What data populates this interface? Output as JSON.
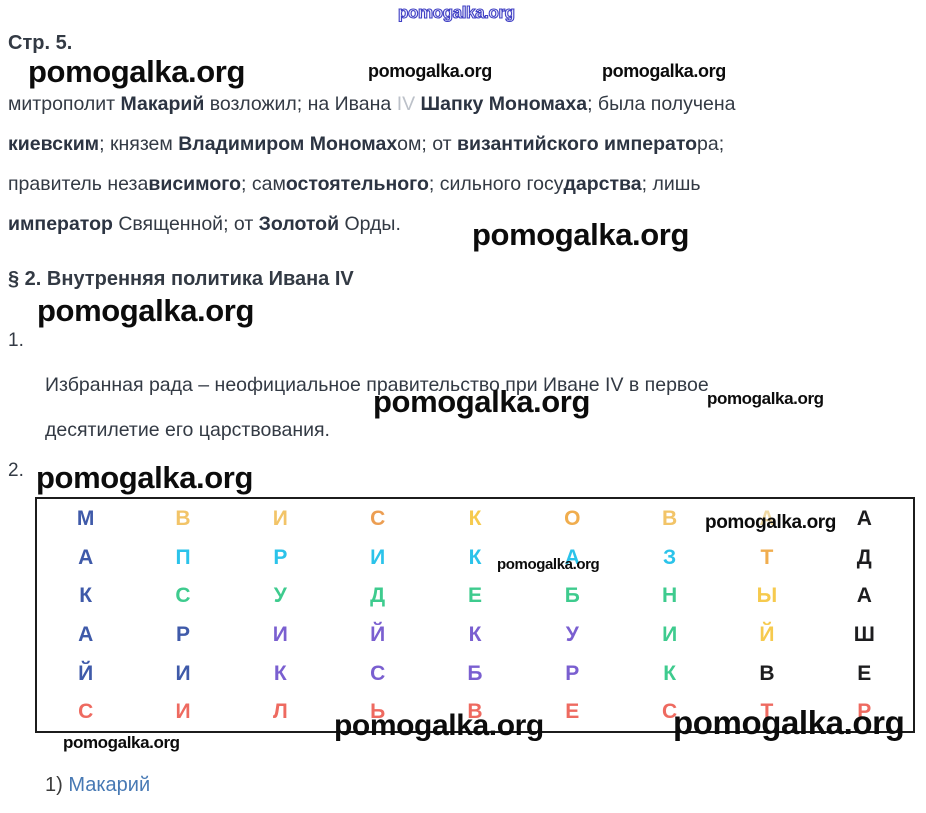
{
  "watermark_text": "pomogalka.org",
  "page": {
    "section_label": "Стр. 5.",
    "item1_label": "1.",
    "item2_label": "2.",
    "answer_prefix": "1) ",
    "answer_link": "Макарий"
  },
  "paragraph1": {
    "lines": [
      [
        {
          "t": "митрополит "
        },
        {
          "t": "Макарий",
          "b": true
        },
        {
          "t": " возложил; на Ивана "
        },
        {
          "t": "IV",
          "f": true
        },
        {
          "t": " "
        },
        {
          "t": "Ш",
          "b": true,
          "f": true
        },
        {
          "t": "апку Мономаха",
          "b": true
        },
        {
          "t": "; была получена"
        }
      ],
      [
        {
          "t": "киевским",
          "b": true
        },
        {
          "t": "; князем "
        },
        {
          "t": "Владимиром Мономах",
          "b": true
        },
        {
          "t": "ом; от "
        },
        {
          "t": "византийского императо",
          "b": true
        },
        {
          "t": "ра;"
        }
      ],
      [
        {
          "t": "правитель неза"
        },
        {
          "t": "висимого",
          "b": true
        },
        {
          "t": "; сам"
        },
        {
          "t": "остоятельного",
          "b": true
        },
        {
          "t": "; сильного госу"
        },
        {
          "t": "дарства",
          "b": true
        },
        {
          "t": "; лишь"
        }
      ],
      [
        {
          "t": "император",
          "b": true
        },
        {
          "t": " Священной; от "
        },
        {
          "t": "Золотой",
          "b": true
        },
        {
          "t": " Орды."
        }
      ]
    ]
  },
  "heading2": "§ 2. Внутренняя политика Ивана IV",
  "paragraph2": {
    "lines": [
      "Избранная рада – неофициальное правительство при Иване IV в первое",
      "десятилетие его царствования."
    ]
  },
  "grid": {
    "colors": {
      "blue": "#3f5aa9",
      "amber": "#f0ad4e",
      "amberLight": "#f2c468",
      "paleAmber": "#f0d9a4",
      "orange": "#ec9e52",
      "yellow": "#f6ca4e",
      "cyan": "#2bc3ea",
      "green": "#3ecb8e",
      "purple": "#7a5fd0",
      "red": "#ee6a60",
      "black": "#1d1d1f"
    },
    "legend": {
      "blue": "МАКАРИЙ",
      "cyan": "ПРИКАЗ",
      "green": "СУДЕБНИК",
      "purple": "КУРБСКИЙ",
      "red": "СИЛЬВЕСТР",
      "amber": "ВИСКОВАТЫЙ",
      "black": "АДАШЕВ"
    },
    "rows": [
      [
        {
          "ch": "М",
          "c": "blue"
        },
        {
          "ch": "В",
          "c": "amberLight"
        },
        {
          "ch": "И",
          "c": "amberLight"
        },
        {
          "ch": "С",
          "c": "orange"
        },
        {
          "ch": "К",
          "c": "yellow"
        },
        {
          "ch": "О",
          "c": "amber"
        },
        {
          "ch": "В",
          "c": "amberLight"
        },
        {
          "ch": "А",
          "c": "paleAmber"
        },
        {
          "ch": "А",
          "c": "black"
        }
      ],
      [
        {
          "ch": "А",
          "c": "blue"
        },
        {
          "ch": "П",
          "c": "cyan"
        },
        {
          "ch": "Р",
          "c": "cyan"
        },
        {
          "ch": "И",
          "c": "cyan"
        },
        {
          "ch": "К",
          "c": "cyan"
        },
        {
          "ch": "А",
          "c": "cyan"
        },
        {
          "ch": "З",
          "c": "cyan"
        },
        {
          "ch": "Т",
          "c": "amber"
        },
        {
          "ch": "Д",
          "c": "black"
        }
      ],
      [
        {
          "ch": "К",
          "c": "blue"
        },
        {
          "ch": "С",
          "c": "green"
        },
        {
          "ch": "У",
          "c": "green"
        },
        {
          "ch": "Д",
          "c": "green"
        },
        {
          "ch": "Е",
          "c": "green"
        },
        {
          "ch": "Б",
          "c": "green"
        },
        {
          "ch": "Н",
          "c": "green"
        },
        {
          "ch": "Ы",
          "c": "yellow"
        },
        {
          "ch": "А",
          "c": "black"
        }
      ],
      [
        {
          "ch": "А",
          "c": "blue"
        },
        {
          "ch": "Р",
          "c": "blue"
        },
        {
          "ch": "И",
          "c": "purple"
        },
        {
          "ch": "Й",
          "c": "purple"
        },
        {
          "ch": "К",
          "c": "purple"
        },
        {
          "ch": "У",
          "c": "purple"
        },
        {
          "ch": "И",
          "c": "green"
        },
        {
          "ch": "Й",
          "c": "yellow"
        },
        {
          "ch": "Ш",
          "c": "black"
        }
      ],
      [
        {
          "ch": "Й",
          "c": "blue"
        },
        {
          "ch": "И",
          "c": "blue"
        },
        {
          "ch": "К",
          "c": "purple"
        },
        {
          "ch": "С",
          "c": "purple"
        },
        {
          "ch": "Б",
          "c": "purple"
        },
        {
          "ch": "Р",
          "c": "purple"
        },
        {
          "ch": "К",
          "c": "green"
        },
        {
          "ch": "В",
          "c": "black"
        },
        {
          "ch": "Е",
          "c": "black"
        }
      ],
      [
        {
          "ch": "С",
          "c": "red"
        },
        {
          "ch": "И",
          "c": "red"
        },
        {
          "ch": "Л",
          "c": "red"
        },
        {
          "ch": "Ь",
          "c": "red"
        },
        {
          "ch": "В",
          "c": "red"
        },
        {
          "ch": "Е",
          "c": "red"
        },
        {
          "ch": "С",
          "c": "red"
        },
        {
          "ch": "Т",
          "c": "red"
        },
        {
          "ch": "Р",
          "c": "red"
        }
      ]
    ]
  }
}
